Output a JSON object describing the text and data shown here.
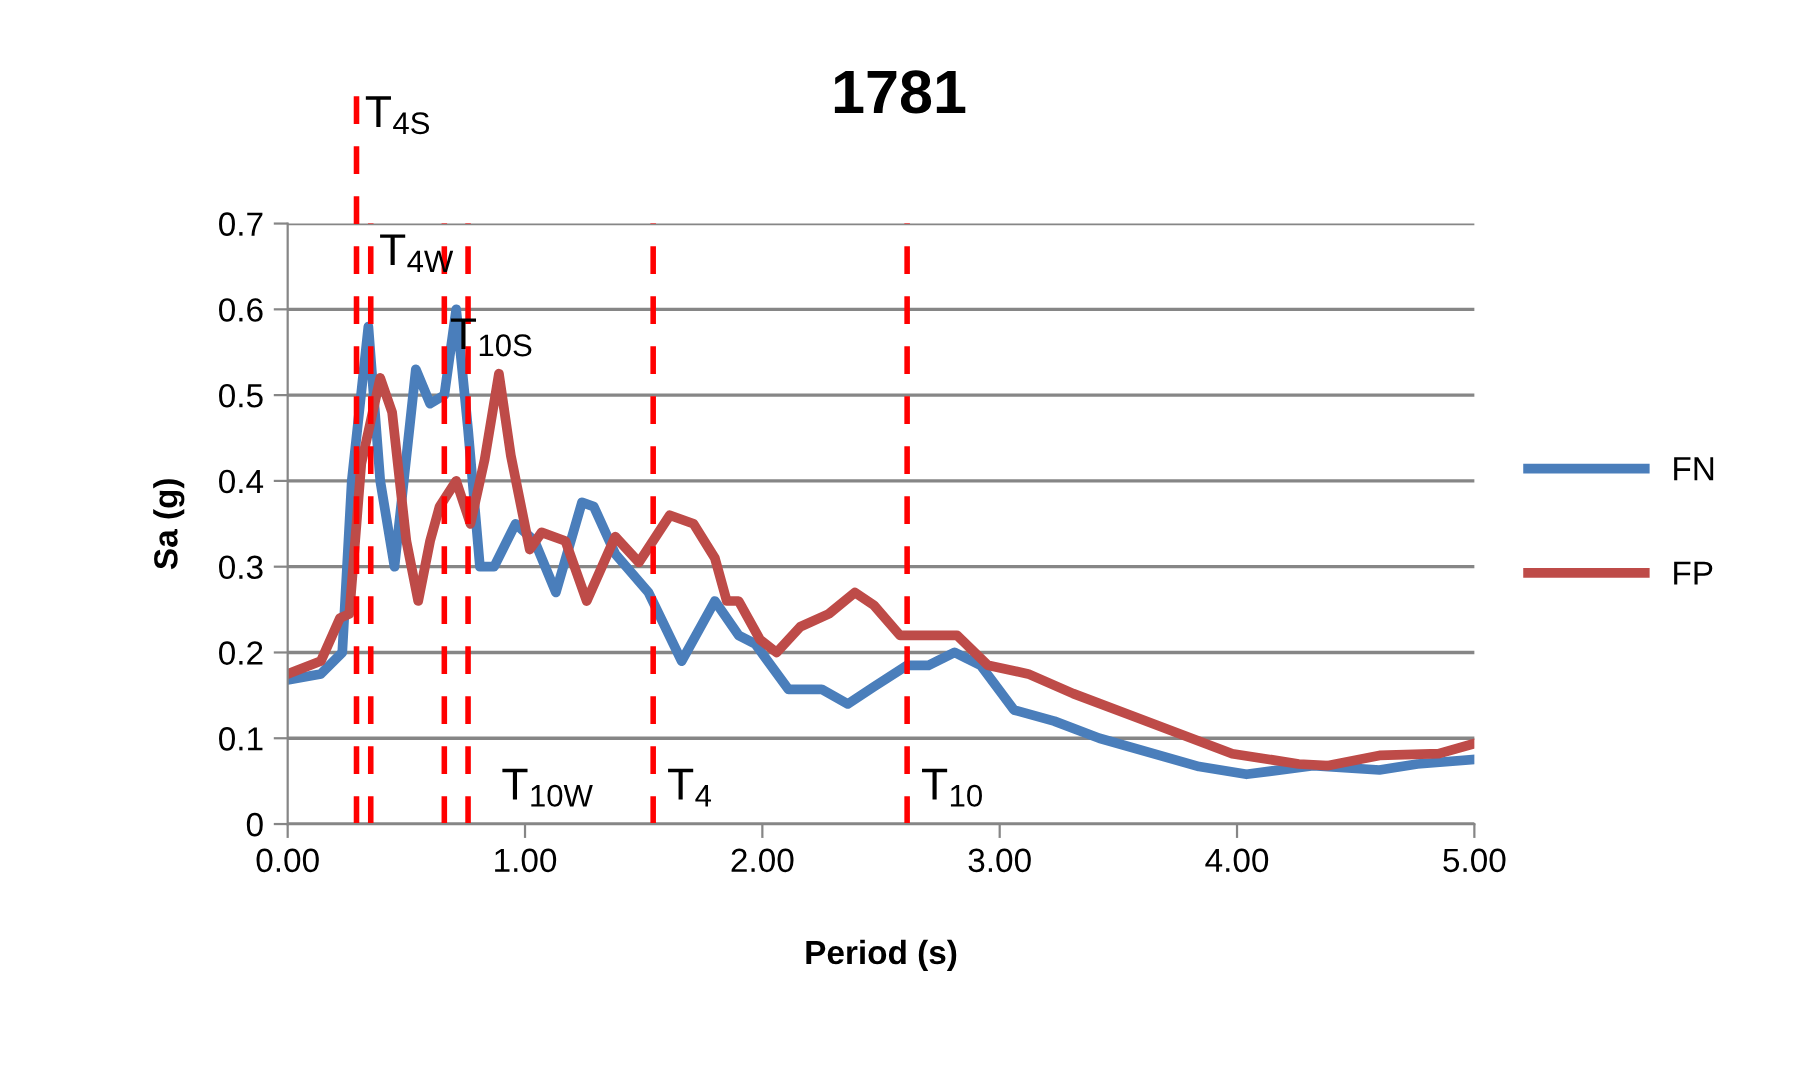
{
  "chart_data": {
    "type": "line",
    "title": "1781",
    "xlabel": "Period (s)",
    "ylabel": "Sa (g)",
    "xlim": [
      0,
      5
    ],
    "xticks": [
      {
        "value": 0,
        "label": "0.00"
      },
      {
        "value": 1,
        "label": "1.00"
      },
      {
        "value": 2,
        "label": "2.00"
      },
      {
        "value": 3,
        "label": "3.00"
      },
      {
        "value": 4,
        "label": "4.00"
      },
      {
        "value": 5,
        "label": "5.00"
      }
    ],
    "ylim": [
      0,
      0.7
    ],
    "yticks": [
      0,
      0.1,
      0.2,
      0.3,
      0.4,
      0.5,
      0.6,
      0.7
    ],
    "grid": "y",
    "legend": "right",
    "marker": "none",
    "line_style": "solid",
    "series": [
      {
        "name": "FN",
        "color": "#4a7ebb",
        "x": [
          0,
          0.14,
          0.23,
          0.27,
          0.34,
          0.39,
          0.45,
          0.54,
          0.6,
          0.66,
          0.71,
          0.76,
          0.81,
          0.87,
          0.96,
          1.04,
          1.13,
          1.24,
          1.29,
          1.38,
          1.52,
          1.66,
          1.8,
          1.9,
          1.97,
          2.11,
          2.25,
          2.36,
          2.47,
          2.61,
          2.7,
          2.81,
          2.92,
          3.06,
          3.23,
          3.42,
          3.84,
          4.04,
          4.32,
          4.6,
          4.76,
          4.99
        ],
        "values": [
          0.168,
          0.175,
          0.2,
          0.4,
          0.58,
          0.4,
          0.3,
          0.53,
          0.49,
          0.5,
          0.6,
          0.46,
          0.3,
          0.3,
          0.35,
          0.33,
          0.27,
          0.375,
          0.37,
          0.315,
          0.27,
          0.19,
          0.26,
          0.22,
          0.21,
          0.157,
          0.157,
          0.14,
          0.16,
          0.185,
          0.185,
          0.2,
          0.185,
          0.133,
          0.12,
          0.1,
          0.067,
          0.058,
          0.068,
          0.063,
          0.07,
          0.075
        ]
      },
      {
        "name": "FP",
        "color": "#be4b48",
        "x": [
          0,
          0.14,
          0.22,
          0.26,
          0.31,
          0.39,
          0.44,
          0.5,
          0.55,
          0.6,
          0.64,
          0.71,
          0.77,
          0.83,
          0.89,
          0.94,
          1.02,
          1.07,
          1.17,
          1.26,
          1.38,
          1.48,
          1.61,
          1.71,
          1.8,
          1.85,
          1.9,
          1.99,
          2.06,
          2.16,
          2.28,
          2.39,
          2.47,
          2.58,
          2.75,
          2.82,
          2.95,
          3.12,
          3.31,
          3.56,
          3.98,
          4.26,
          4.38,
          4.6,
          4.85,
          4.99
        ],
        "values": [
          0.175,
          0.19,
          0.24,
          0.245,
          0.42,
          0.52,
          0.48,
          0.33,
          0.26,
          0.33,
          0.37,
          0.4,
          0.35,
          0.425,
          0.525,
          0.43,
          0.32,
          0.34,
          0.33,
          0.26,
          0.335,
          0.305,
          0.36,
          0.35,
          0.31,
          0.26,
          0.26,
          0.215,
          0.2,
          0.23,
          0.245,
          0.27,
          0.255,
          0.22,
          0.22,
          0.22,
          0.185,
          0.175,
          0.152,
          0.126,
          0.082,
          0.07,
          0.068,
          0.08,
          0.082,
          0.093
        ]
      }
    ],
    "ref_lines": [
      {
        "axis": "x",
        "value": 0.29,
        "label": "T$_{4S}$",
        "color": "#ff0000",
        "line_style": "dashed"
      },
      {
        "axis": "x",
        "value": 0.35,
        "label": "T$_{4W}$",
        "color": "#ff0000",
        "line_style": "dashed"
      },
      {
        "axis": "x",
        "value": 0.66,
        "label": "T$_{10S}$",
        "color": "#ff0000",
        "line_style": "dashed"
      },
      {
        "axis": "x",
        "value": 0.76,
        "label": "T$_{10W}$",
        "color": "#ff0000",
        "line_style": "dashed"
      },
      {
        "axis": "x",
        "value": 1.54,
        "label": "T$_{4}$",
        "color": "#ff0000",
        "line_style": "dashed"
      },
      {
        "axis": "x",
        "value": 2.61,
        "label": "T$_{10}$",
        "color": "#ff0000",
        "line_style": "dashed"
      }
    ]
  }
}
